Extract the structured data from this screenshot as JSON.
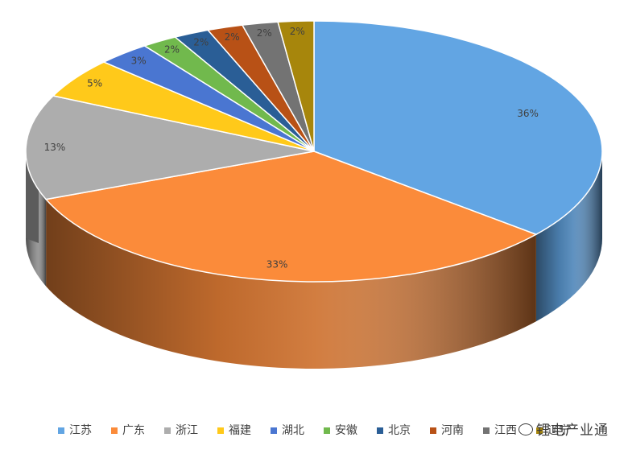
{
  "chart_data": {
    "type": "pie",
    "style": "3d-exploded",
    "title": "",
    "legend_position": "bottom",
    "categories": [
      "江苏",
      "广东",
      "浙江",
      "福建",
      "湖北",
      "安徽",
      "北京",
      "河南",
      "江西",
      "辽宁"
    ],
    "values": [
      36,
      33,
      13,
      5,
      3,
      2,
      2,
      2,
      2,
      2
    ],
    "labels": [
      "36%",
      "33%",
      "13%",
      "5%",
      "3%",
      "2%",
      "2%",
      "2%",
      "2%",
      "2%"
    ],
    "colors": [
      "#62a5e3",
      "#fb8b3a",
      "#adadad",
      "#ffc91a",
      "#4a76d1",
      "#71b94d",
      "#2a5e96",
      "#b85116",
      "#737373",
      "#a7860c"
    ]
  },
  "watermark": "锂电产业通"
}
